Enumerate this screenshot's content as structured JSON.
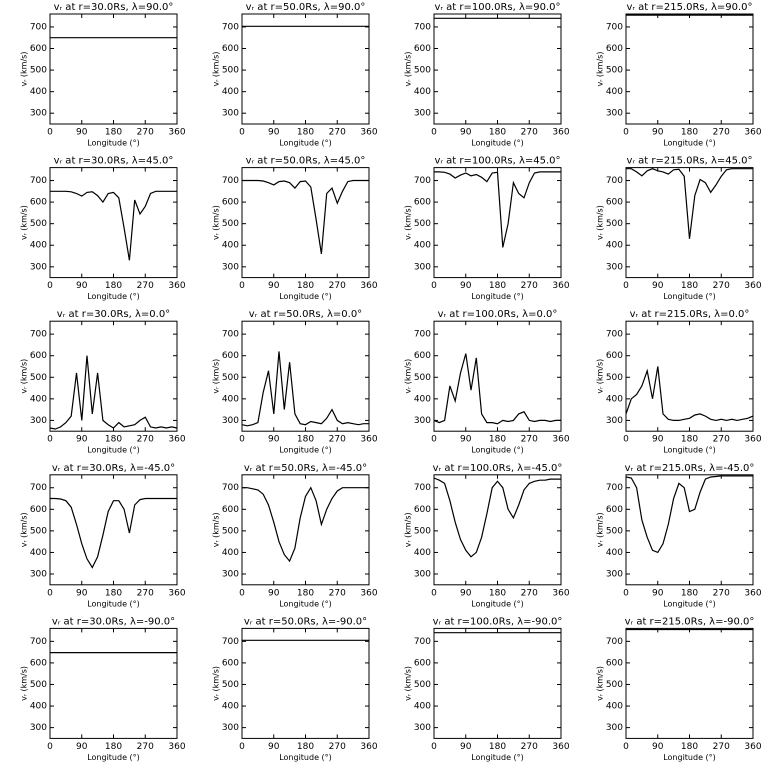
{
  "chart_data": [
    {
      "type": "line",
      "title": "vᵣ at r=30.0Rs, λ=90.0°",
      "xlabel": "Longitude (°)",
      "ylabel": "vᵣ (km/s)",
      "color": "#000000",
      "x": [
        0,
        360
      ],
      "values": [
        650,
        650
      ],
      "xlim": [
        0,
        360
      ],
      "ylim": [
        250,
        760
      ],
      "xticks": [
        0,
        90,
        180,
        270,
        360
      ],
      "yticks": [
        300,
        400,
        500,
        600,
        700
      ]
    },
    {
      "type": "line",
      "title": "vᵣ at r=50.0Rs, λ=90.0°",
      "xlabel": "Longitude (°)",
      "ylabel": "vᵣ (km/s)",
      "color": "#000000",
      "x": [
        0,
        360
      ],
      "values": [
        703,
        703
      ],
      "xlim": [
        0,
        360
      ],
      "ylim": [
        250,
        760
      ],
      "xticks": [
        0,
        90,
        180,
        270,
        360
      ],
      "yticks": [
        300,
        400,
        500,
        600,
        700
      ]
    },
    {
      "type": "line",
      "title": "vᵣ at r=100.0Rs, λ=90.0°",
      "xlabel": "Longitude (°)",
      "ylabel": "vᵣ (km/s)",
      "color": "#000000",
      "x": [
        0,
        360
      ],
      "values": [
        740,
        740
      ],
      "xlim": [
        0,
        360
      ],
      "ylim": [
        250,
        760
      ],
      "xticks": [
        0,
        90,
        180,
        270,
        360
      ],
      "yticks": [
        300,
        400,
        500,
        600,
        700
      ]
    },
    {
      "type": "line",
      "title": "vᵣ at r=215.0Rs, λ=90.0°",
      "xlabel": "Longitude (°)",
      "ylabel": "vᵣ (km/s)",
      "color": "#000000",
      "x": [
        0,
        360
      ],
      "values": [
        755,
        755
      ],
      "xlim": [
        0,
        360
      ],
      "ylim": [
        250,
        760
      ],
      "xticks": [
        0,
        90,
        180,
        270,
        360
      ],
      "yticks": [
        300,
        400,
        500,
        600,
        700
      ]
    },
    {
      "type": "line",
      "title": "vᵣ at r=30.0Rs, λ=45.0°",
      "xlabel": "Longitude (°)",
      "ylabel": "vᵣ (km/s)",
      "color": "#000000",
      "x": [
        0,
        15,
        30,
        45,
        60,
        75,
        90,
        105,
        120,
        135,
        150,
        165,
        180,
        195,
        210,
        225,
        240,
        255,
        270,
        285,
        300,
        315,
        330,
        345,
        360
      ],
      "values": [
        650,
        650,
        650,
        650,
        648,
        640,
        628,
        645,
        648,
        630,
        600,
        640,
        645,
        620,
        480,
        330,
        610,
        545,
        580,
        640,
        650,
        650,
        650,
        650,
        650
      ],
      "xlim": [
        0,
        360
      ],
      "ylim": [
        250,
        760
      ],
      "xticks": [
        0,
        90,
        180,
        270,
        360
      ],
      "yticks": [
        300,
        400,
        500,
        600,
        700
      ]
    },
    {
      "type": "line",
      "title": "vᵣ at r=50.0Rs, λ=45.0°",
      "xlabel": "Longitude (°)",
      "ylabel": "vᵣ (km/s)",
      "color": "#000000",
      "x": [
        0,
        15,
        30,
        45,
        60,
        75,
        90,
        105,
        120,
        135,
        150,
        165,
        180,
        195,
        210,
        225,
        240,
        255,
        270,
        285,
        300,
        315,
        330,
        345,
        360
      ],
      "values": [
        700,
        700,
        700,
        700,
        698,
        690,
        680,
        695,
        698,
        690,
        665,
        695,
        698,
        670,
        520,
        360,
        640,
        665,
        595,
        650,
        695,
        700,
        700,
        700,
        700
      ],
      "xlim": [
        0,
        360
      ],
      "ylim": [
        250,
        760
      ],
      "xticks": [
        0,
        90,
        180,
        270,
        360
      ],
      "yticks": [
        300,
        400,
        500,
        600,
        700
      ]
    },
    {
      "type": "line",
      "title": "vᵣ at r=100.0Rs, λ=45.0°",
      "xlabel": "Longitude (°)",
      "ylabel": "vᵣ (km/s)",
      "color": "#000000",
      "x": [
        0,
        15,
        30,
        45,
        60,
        75,
        90,
        105,
        120,
        135,
        150,
        165,
        180,
        195,
        210,
        225,
        240,
        255,
        270,
        285,
        300,
        315,
        330,
        345,
        360
      ],
      "values": [
        740,
        740,
        738,
        730,
        712,
        725,
        735,
        722,
        728,
        715,
        695,
        735,
        738,
        390,
        500,
        690,
        640,
        620,
        690,
        735,
        740,
        740,
        740,
        740,
        740
      ],
      "xlim": [
        0,
        360
      ],
      "ylim": [
        250,
        760
      ],
      "xticks": [
        0,
        90,
        180,
        270,
        360
      ],
      "yticks": [
        300,
        400,
        500,
        600,
        700
      ]
    },
    {
      "type": "line",
      "title": "vᵣ at r=215.0Rs, λ=45.0°",
      "xlabel": "Longitude (°)",
      "ylabel": "vᵣ (km/s)",
      "color": "#000000",
      "x": [
        0,
        15,
        30,
        45,
        60,
        75,
        90,
        105,
        120,
        135,
        150,
        165,
        180,
        195,
        210,
        225,
        240,
        255,
        270,
        285,
        300,
        315,
        330,
        345,
        360
      ],
      "values": [
        755,
        755,
        740,
        722,
        745,
        755,
        745,
        740,
        730,
        750,
        752,
        720,
        430,
        630,
        705,
        690,
        645,
        680,
        720,
        750,
        755,
        755,
        755,
        755,
        755
      ],
      "xlim": [
        0,
        360
      ],
      "ylim": [
        250,
        760
      ],
      "xticks": [
        0,
        90,
        180,
        270,
        360
      ],
      "yticks": [
        300,
        400,
        500,
        600,
        700
      ]
    },
    {
      "type": "line",
      "title": "vᵣ at r=30.0Rs, λ=0.0°",
      "xlabel": "Longitude (°)",
      "ylabel": "vᵣ (km/s)",
      "color": "#000000",
      "x": [
        0,
        15,
        30,
        45,
        60,
        75,
        90,
        105,
        120,
        135,
        150,
        165,
        180,
        195,
        210,
        225,
        240,
        255,
        270,
        285,
        300,
        315,
        330,
        345,
        360
      ],
      "values": [
        265,
        260,
        270,
        290,
        320,
        520,
        300,
        600,
        330,
        520,
        300,
        280,
        265,
        290,
        270,
        275,
        280,
        300,
        315,
        270,
        265,
        270,
        265,
        270,
        265
      ],
      "xlim": [
        0,
        360
      ],
      "ylim": [
        250,
        760
      ],
      "xticks": [
        0,
        90,
        180,
        270,
        360
      ],
      "yticks": [
        300,
        400,
        500,
        600,
        700
      ]
    },
    {
      "type": "line",
      "title": "vᵣ at r=50.0Rs, λ=0.0°",
      "xlabel": "Longitude (°)",
      "ylabel": "vᵣ (km/s)",
      "color": "#000000",
      "x": [
        0,
        15,
        30,
        45,
        60,
        75,
        90,
        105,
        120,
        135,
        150,
        165,
        180,
        195,
        210,
        225,
        240,
        255,
        270,
        285,
        300,
        315,
        330,
        345,
        360
      ],
      "values": [
        280,
        275,
        280,
        290,
        430,
        530,
        330,
        620,
        350,
        570,
        330,
        285,
        280,
        295,
        290,
        285,
        310,
        350,
        300,
        285,
        290,
        285,
        280,
        285,
        285
      ],
      "xlim": [
        0,
        360
      ],
      "ylim": [
        250,
        760
      ],
      "xticks": [
        0,
        90,
        180,
        270,
        360
      ],
      "yticks": [
        300,
        400,
        500,
        600,
        700
      ]
    },
    {
      "type": "line",
      "title": "vᵣ at r=100.0Rs, λ=0.0°",
      "xlabel": "Longitude (°)",
      "ylabel": "vᵣ (km/s)",
      "color": "#000000",
      "x": [
        0,
        15,
        30,
        45,
        60,
        75,
        90,
        105,
        120,
        135,
        150,
        165,
        180,
        195,
        210,
        225,
        240,
        255,
        270,
        285,
        300,
        315,
        330,
        345,
        360
      ],
      "values": [
        300,
        290,
        300,
        460,
        390,
        520,
        610,
        440,
        590,
        330,
        290,
        290,
        285,
        300,
        295,
        300,
        330,
        340,
        300,
        295,
        300,
        300,
        295,
        300,
        300
      ],
      "xlim": [
        0,
        360
      ],
      "ylim": [
        250,
        760
      ],
      "xticks": [
        0,
        90,
        180,
        270,
        360
      ],
      "yticks": [
        300,
        400,
        500,
        600,
        700
      ]
    },
    {
      "type": "line",
      "title": "vᵣ at r=215.0Rs, λ=0.0°",
      "xlabel": "Longitude (°)",
      "ylabel": "vᵣ (km/s)",
      "color": "#000000",
      "x": [
        0,
        15,
        30,
        45,
        60,
        75,
        90,
        105,
        120,
        135,
        150,
        165,
        180,
        195,
        210,
        225,
        240,
        255,
        270,
        285,
        300,
        315,
        330,
        345,
        360
      ],
      "values": [
        330,
        400,
        420,
        460,
        530,
        400,
        550,
        330,
        305,
        300,
        300,
        305,
        310,
        325,
        330,
        320,
        305,
        300,
        305,
        300,
        305,
        300,
        305,
        310,
        320
      ],
      "xlim": [
        0,
        360
      ],
      "ylim": [
        250,
        760
      ],
      "xticks": [
        0,
        90,
        180,
        270,
        360
      ],
      "yticks": [
        300,
        400,
        500,
        600,
        700
      ]
    },
    {
      "type": "line",
      "title": "vᵣ at r=30.0Rs, λ=-45.0°",
      "xlabel": "Longitude (°)",
      "ylabel": "vᵣ (km/s)",
      "color": "#000000",
      "x": [
        0,
        15,
        30,
        45,
        60,
        75,
        90,
        105,
        120,
        135,
        150,
        165,
        180,
        195,
        210,
        225,
        240,
        255,
        270,
        285,
        300,
        315,
        330,
        345,
        360
      ],
      "values": [
        650,
        650,
        648,
        640,
        610,
        530,
        440,
        370,
        330,
        380,
        480,
        590,
        640,
        640,
        600,
        490,
        620,
        645,
        650,
        650,
        650,
        650,
        650,
        650,
        650
      ],
      "xlim": [
        0,
        360
      ],
      "ylim": [
        250,
        760
      ],
      "xticks": [
        0,
        90,
        180,
        270,
        360
      ],
      "yticks": [
        300,
        400,
        500,
        600,
        700
      ]
    },
    {
      "type": "line",
      "title": "vᵣ at r=50.0Rs, λ=-45.0°",
      "xlabel": "Longitude (°)",
      "ylabel": "vᵣ (km/s)",
      "color": "#000000",
      "x": [
        0,
        15,
        30,
        45,
        60,
        75,
        90,
        105,
        120,
        135,
        150,
        165,
        180,
        195,
        210,
        225,
        240,
        255,
        270,
        285,
        300,
        315,
        330,
        345,
        360
      ],
      "values": [
        700,
        700,
        695,
        690,
        670,
        620,
        540,
        450,
        390,
        360,
        420,
        560,
        660,
        700,
        640,
        530,
        600,
        650,
        685,
        700,
        700,
        700,
        700,
        700,
        700
      ],
      "xlim": [
        0,
        360
      ],
      "ylim": [
        250,
        760
      ],
      "xticks": [
        0,
        90,
        180,
        270,
        360
      ],
      "yticks": [
        300,
        400,
        500,
        600,
        700
      ]
    },
    {
      "type": "line",
      "title": "vᵣ at r=100.0Rs, λ=-45.0°",
      "xlabel": "Longitude (°)",
      "ylabel": "vᵣ (km/s)",
      "color": "#000000",
      "x": [
        0,
        15,
        30,
        45,
        60,
        75,
        90,
        105,
        120,
        135,
        150,
        165,
        180,
        195,
        210,
        225,
        240,
        255,
        270,
        285,
        300,
        315,
        330,
        345,
        360
      ],
      "values": [
        745,
        735,
        720,
        640,
        540,
        460,
        410,
        380,
        400,
        470,
        580,
        700,
        730,
        700,
        600,
        560,
        620,
        690,
        720,
        730,
        735,
        735,
        740,
        740,
        740
      ],
      "xlim": [
        0,
        360
      ],
      "ylim": [
        250,
        760
      ],
      "xticks": [
        0,
        90,
        180,
        270,
        360
      ],
      "yticks": [
        300,
        400,
        500,
        600,
        700
      ]
    },
    {
      "type": "line",
      "title": "vᵣ at r=215.0Rs, λ=-45.0°",
      "xlabel": "Longitude (°)",
      "ylabel": "vᵣ (km/s)",
      "color": "#000000",
      "x": [
        0,
        15,
        30,
        45,
        60,
        75,
        90,
        105,
        120,
        135,
        150,
        165,
        180,
        195,
        210,
        225,
        240,
        255,
        270,
        285,
        300,
        315,
        330,
        345,
        360
      ],
      "values": [
        750,
        745,
        700,
        550,
        470,
        410,
        400,
        440,
        530,
        650,
        720,
        700,
        590,
        600,
        680,
        740,
        750,
        752,
        755,
        755,
        755,
        755,
        755,
        755,
        755
      ],
      "xlim": [
        0,
        360
      ],
      "ylim": [
        250,
        760
      ],
      "xticks": [
        0,
        90,
        180,
        270,
        360
      ],
      "yticks": [
        300,
        400,
        500,
        600,
        700
      ]
    },
    {
      "type": "line",
      "title": "vᵣ at r=30.0Rs, λ=-90.0°",
      "xlabel": "Longitude (°)",
      "ylabel": "vᵣ (km/s)",
      "color": "#000000",
      "x": [
        0,
        360
      ],
      "values": [
        648,
        648
      ],
      "xlim": [
        0,
        360
      ],
      "ylim": [
        250,
        760
      ],
      "xticks": [
        0,
        90,
        180,
        270,
        360
      ],
      "yticks": [
        300,
        400,
        500,
        600,
        700
      ]
    },
    {
      "type": "line",
      "title": "vᵣ at r=50.0Rs, λ=-90.0°",
      "xlabel": "Longitude (°)",
      "ylabel": "vᵣ (km/s)",
      "color": "#000000",
      "x": [
        0,
        360
      ],
      "values": [
        705,
        705
      ],
      "xlim": [
        0,
        360
      ],
      "ylim": [
        250,
        760
      ],
      "xticks": [
        0,
        90,
        180,
        270,
        360
      ],
      "yticks": [
        300,
        400,
        500,
        600,
        700
      ]
    },
    {
      "type": "line",
      "title": "vᵣ at r=100.0Rs, λ=-90.0°",
      "xlabel": "Longitude (°)",
      "ylabel": "vᵣ (km/s)",
      "color": "#000000",
      "x": [
        0,
        360
      ],
      "values": [
        740,
        740
      ],
      "xlim": [
        0,
        360
      ],
      "ylim": [
        250,
        760
      ],
      "xticks": [
        0,
        90,
        180,
        270,
        360
      ],
      "yticks": [
        300,
        400,
        500,
        600,
        700
      ]
    },
    {
      "type": "line",
      "title": "vᵣ at r=215.0Rs, λ=-90.0°",
      "xlabel": "Longitude (°)",
      "ylabel": "vᵣ (km/s)",
      "color": "#000000",
      "x": [
        0,
        360
      ],
      "values": [
        755,
        755
      ],
      "xlim": [
        0,
        360
      ],
      "ylim": [
        250,
        760
      ],
      "xticks": [
        0,
        90,
        180,
        270,
        360
      ],
      "yticks": [
        300,
        400,
        500,
        600,
        700
      ]
    }
  ]
}
